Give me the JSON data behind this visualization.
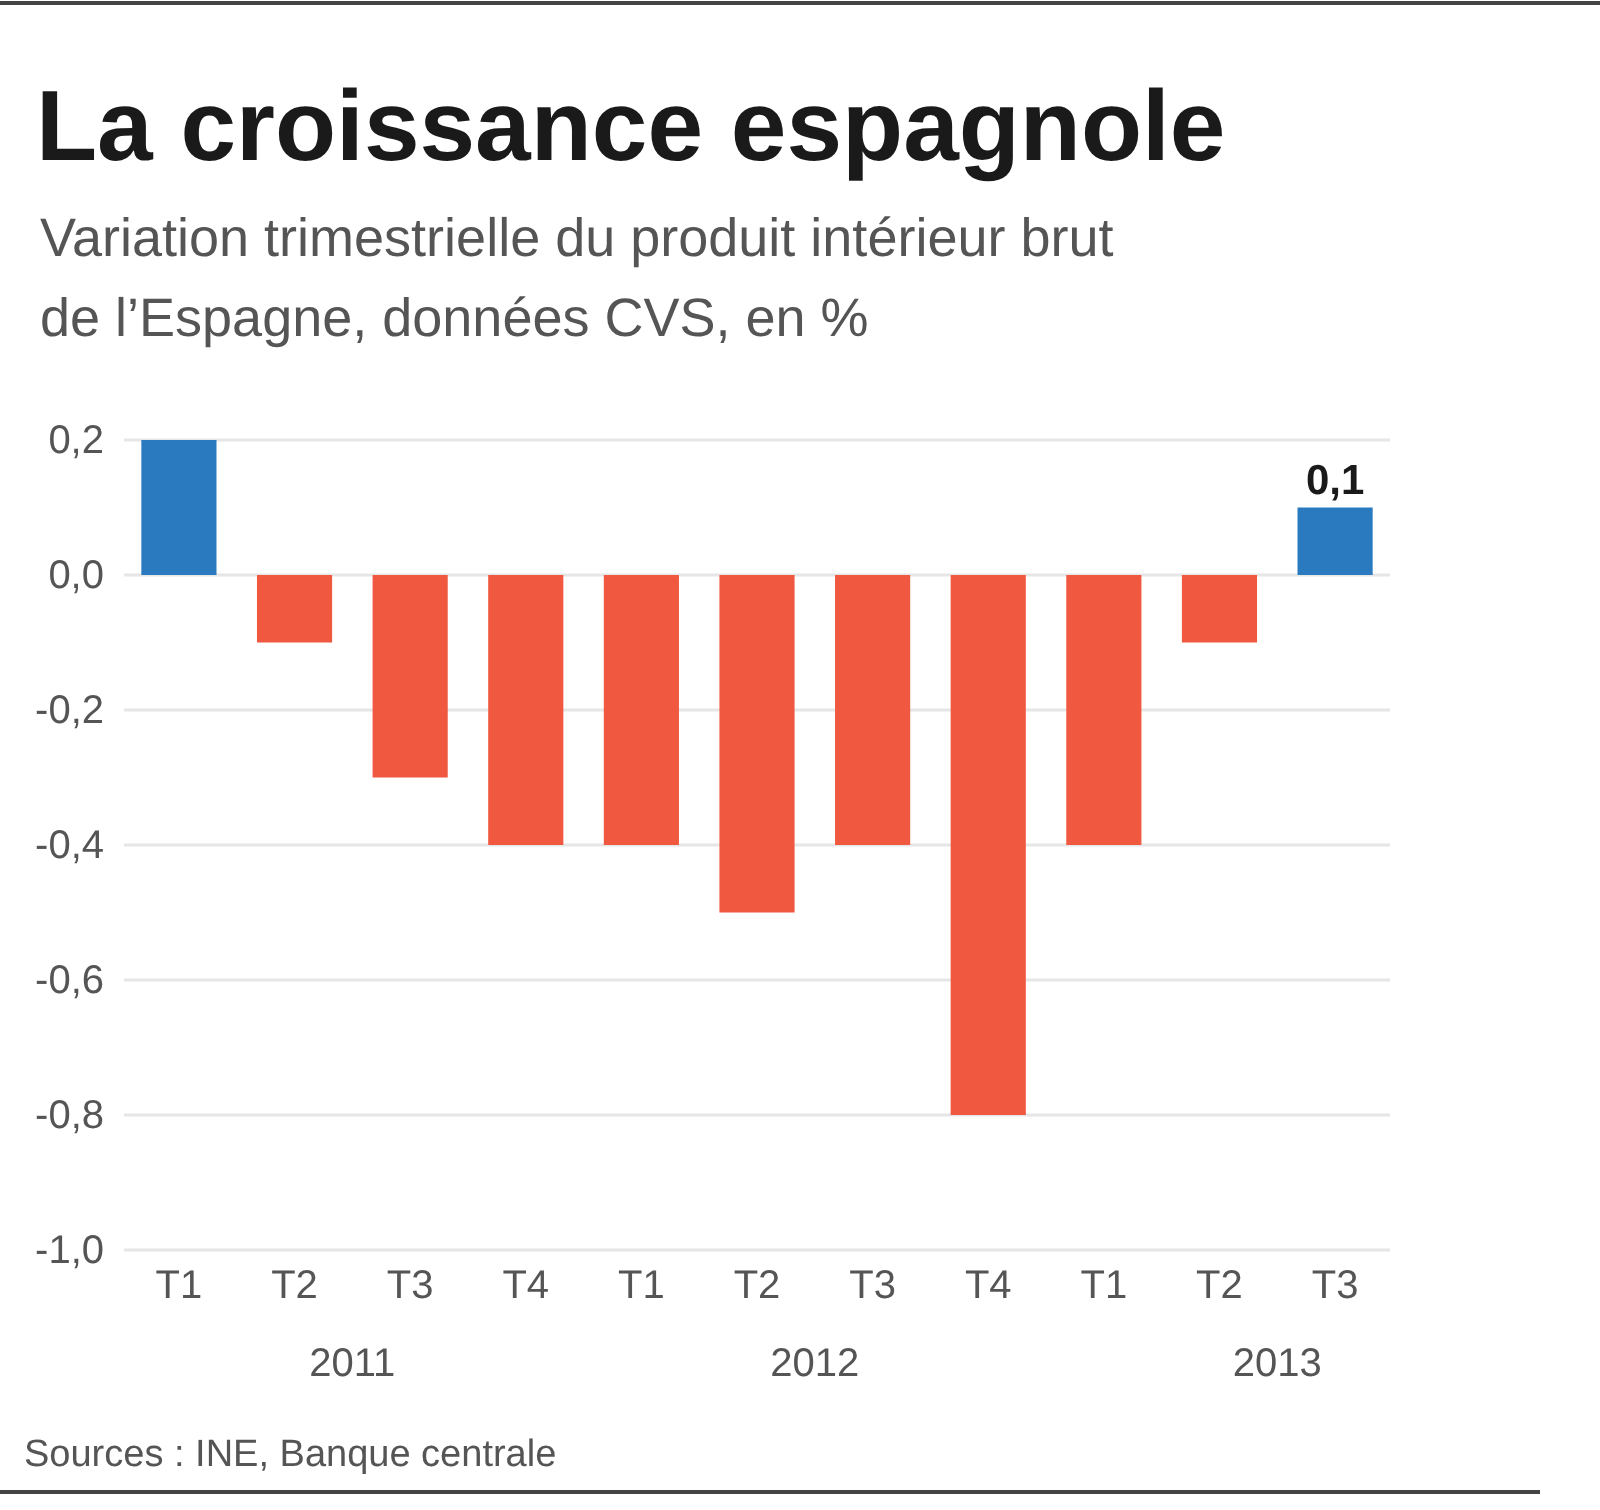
{
  "chart_data": {
    "type": "bar",
    "title": "La croissance espagnole",
    "subtitle": "Variation trimestrielle du produit intérieur brut de l’Espagne, données CVS, en %",
    "categories": [
      "T1",
      "T2",
      "T3",
      "T4",
      "T1",
      "T2",
      "T3",
      "T4",
      "T1",
      "T2",
      "T3"
    ],
    "values": [
      0.2,
      -0.1,
      -0.3,
      -0.4,
      -0.4,
      -0.5,
      -0.4,
      -0.8,
      -0.4,
      -0.1,
      0.1
    ],
    "colors": [
      "#2a7abf",
      "#f0583f",
      "#f0583f",
      "#f0583f",
      "#f0583f",
      "#f0583f",
      "#f0583f",
      "#f0583f",
      "#f0583f",
      "#f0583f",
      "#2a7abf"
    ],
    "value_labels": [
      null,
      null,
      null,
      null,
      null,
      null,
      null,
      null,
      null,
      null,
      "0,1"
    ],
    "ylim": [
      -1,
      0.2
    ],
    "yticks": [
      {
        "value": 0.2,
        "label": "0,2"
      },
      {
        "value": 0,
        "label": "0,0"
      },
      {
        "value": -0.2,
        "label": "-0,2"
      },
      {
        "value": -0.4,
        "label": "-0,4"
      },
      {
        "value": -0.6,
        "label": "-0,6"
      },
      {
        "value": -0.8,
        "label": "-0,8"
      },
      {
        "value": -1,
        "label": "-1,0"
      }
    ],
    "grid": "y",
    "annotations": [
      "2011",
      "2012",
      "2013",
      "Sources : INE, Banque centrale"
    ]
  }
}
